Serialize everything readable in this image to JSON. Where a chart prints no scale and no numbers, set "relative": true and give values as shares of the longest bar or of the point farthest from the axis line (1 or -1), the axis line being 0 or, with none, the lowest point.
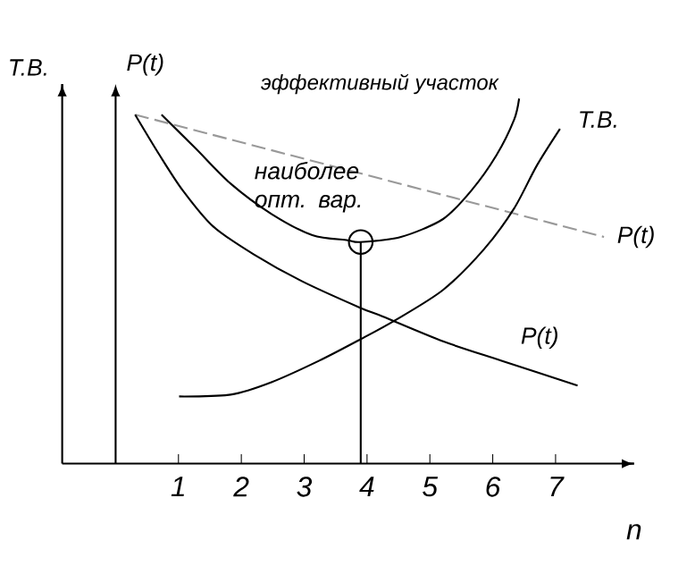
{
  "chart_data": {
    "type": "line",
    "relative": true,
    "xlabel": "n",
    "ylabel": "Т.В.",
    "xlim": [
      -0.85,
      8.25
    ],
    "xticks": [
      1,
      2,
      3,
      4,
      5,
      6,
      7
    ],
    "ref_lines": [
      {
        "axis": "x",
        "value": 0,
        "label": "P(t)"
      }
    ],
    "annotations": [
      "эффективный участок",
      {
        "text": "наиболее опт. вар.",
        "x": 3.9,
        "y": 0.607
      }
    ],
    "series": [
      {
        "name": "P(t)",
        "color": "#999999",
        "line_style": "dashed",
        "x": [
          0.31,
          7.77
        ],
        "values": [
          0.956,
          0.621
        ]
      },
      {
        "name": "P(t)",
        "color": "#000000",
        "x": [
          0.31,
          0.7,
          1.07,
          1.55,
          2.2,
          2.96,
          3.89,
          4.25,
          5.21,
          6.14,
          7.35
        ],
        "values": [
          0.956,
          0.845,
          0.748,
          0.65,
          0.573,
          0.5,
          0.427,
          0.403,
          0.335,
          0.282,
          0.214
        ]
      },
      {
        "color": "#000000",
        "x": [
          0.73,
          1.27,
          1.83,
          2.48,
          3.13,
          3.69,
          3.89,
          4.54,
          5.21,
          5.66,
          6.06,
          6.34,
          6.42
        ],
        "values": [
          0.956,
          0.864,
          0.767,
          0.684,
          0.626,
          0.612,
          0.607,
          0.621,
          0.67,
          0.748,
          0.845,
          0.942,
          1.0
        ]
      },
      {
        "name": "Т.В.",
        "color": "#000000",
        "x": [
          1.01,
          1.83,
          2.48,
          3.24,
          3.89,
          4.45,
          5.21,
          5.86,
          6.34,
          6.7,
          7.07
        ],
        "values": [
          0.184,
          0.189,
          0.223,
          0.282,
          0.34,
          0.393,
          0.476,
          0.587,
          0.699,
          0.816,
          0.917
        ]
      },
      {
        "type": "lollipop",
        "color": "#000000",
        "marker": "circle",
        "x": [
          3.9
        ],
        "values": [
          0.607
        ]
      }
    ]
  }
}
